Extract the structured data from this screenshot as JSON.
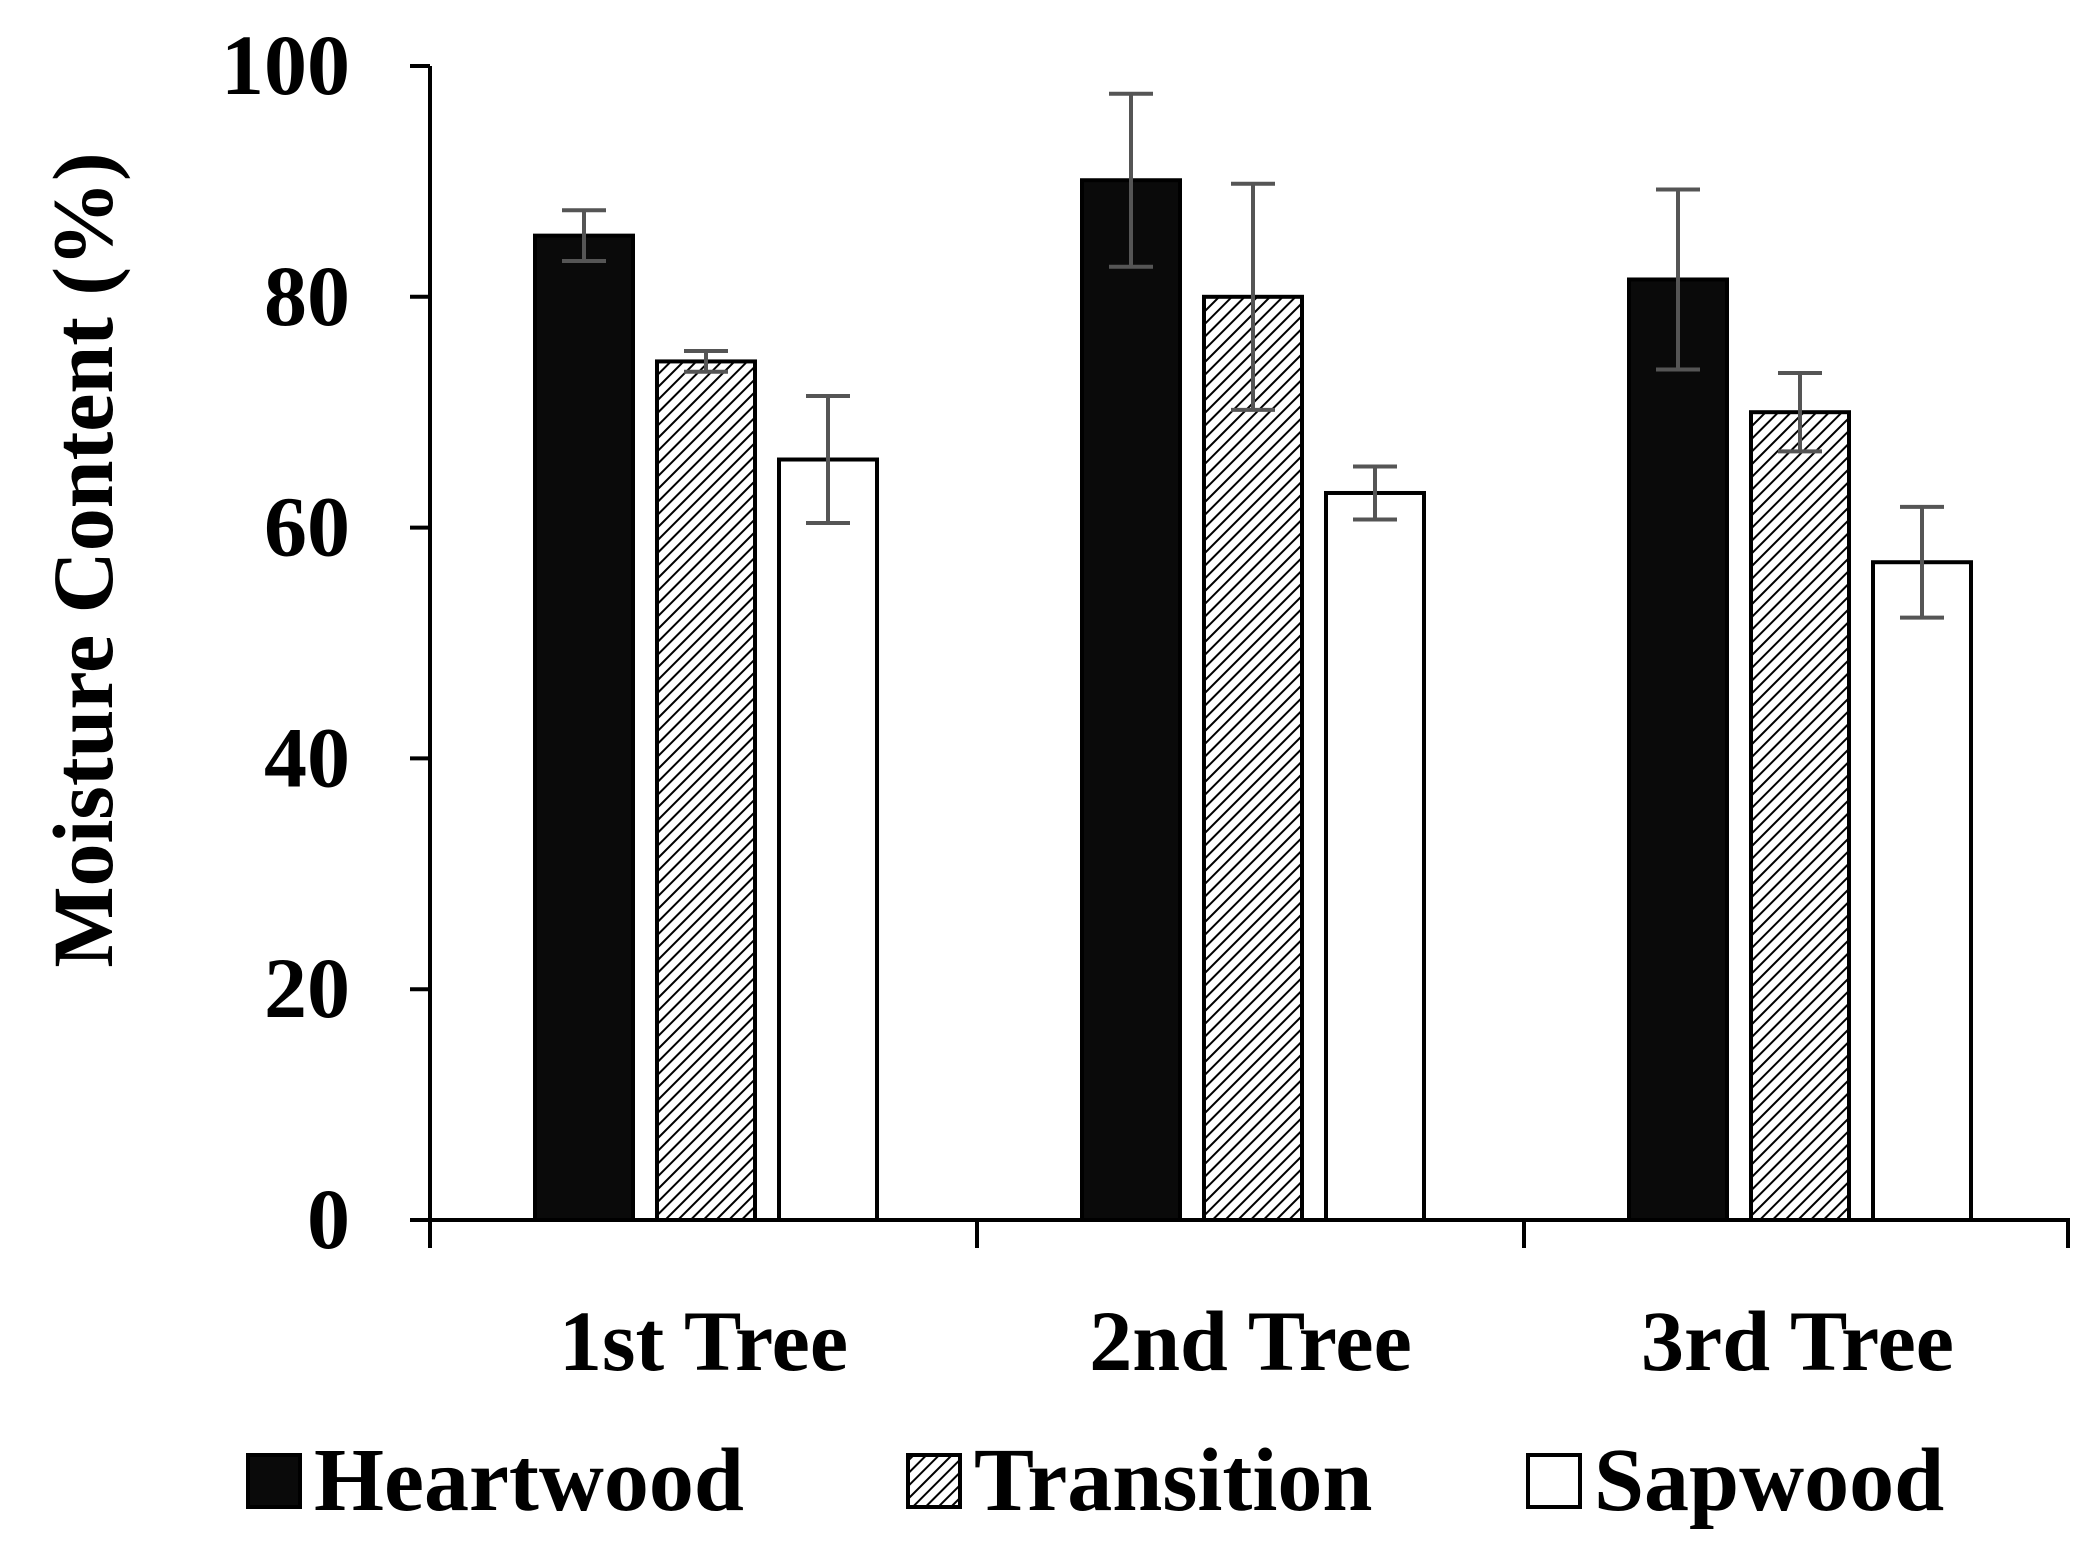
{
  "chart_data": {
    "type": "bar",
    "title": "",
    "xlabel": "",
    "ylabel": "Moisture Content (%)",
    "ylim": [
      0,
      100
    ],
    "yticks": [
      "0",
      "20",
      "40",
      "60",
      "80",
      "100"
    ],
    "categories": [
      "1st Tree",
      "2nd Tree",
      "3rd Tree"
    ],
    "series": [
      {
        "name": "Heartwood",
        "values": [
          85.3,
          90.1,
          81.5
        ],
        "errors": [
          2.2,
          7.5,
          7.8
        ],
        "fill": "#0a0a0a",
        "pattern": "solid"
      },
      {
        "name": "Transition",
        "values": [
          74.4,
          80.0,
          70.0
        ],
        "errors": [
          0.9,
          9.8,
          3.4
        ],
        "fill": "#ffffff",
        "pattern": "diagonal-hatch"
      },
      {
        "name": "Sapwood",
        "values": [
          65.9,
          63.0,
          57.0
        ],
        "errors": [
          5.5,
          2.3,
          4.8
        ],
        "fill": "#ffffff",
        "pattern": "none"
      }
    ],
    "grid": false,
    "legend_position": "bottom",
    "colors": {
      "axis": "#000000",
      "error_bar": "#555555",
      "bar_outline": "#000000"
    }
  }
}
